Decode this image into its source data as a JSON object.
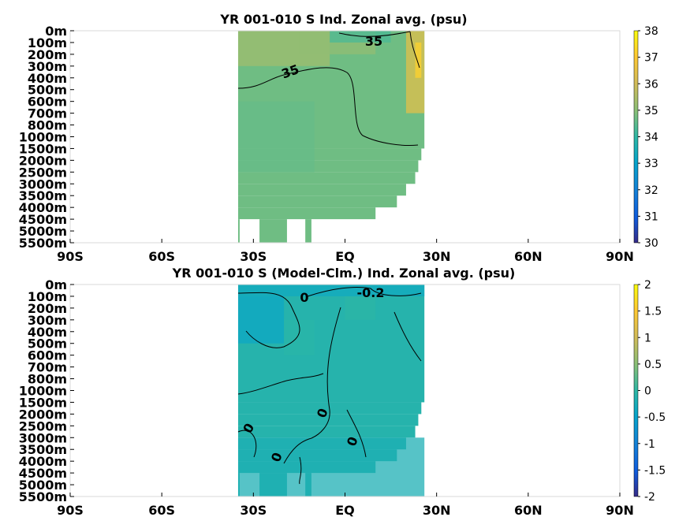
{
  "chart_data": [
    {
      "type": "heatmap",
      "title": "YR 001-010 S Ind. Zonal avg. (psu)",
      "x_ticks": [
        "90S",
        "60S",
        "30S",
        "EQ",
        "30N",
        "60N",
        "90N"
      ],
      "y_ticks": [
        "0m",
        "100m",
        "200m",
        "300m",
        "400m",
        "500m",
        "600m",
        "700m",
        "800m",
        "1000m",
        "1500m",
        "2000m",
        "2500m",
        "3000m",
        "3500m",
        "4000m",
        "4500m",
        "5000m",
        "5500m"
      ],
      "x_range": [
        -90,
        90
      ],
      "colorbar": {
        "min": 30,
        "max": 38,
        "ticks": [
          "30",
          "31",
          "32",
          "33",
          "34",
          "35",
          "36",
          "37",
          "38"
        ]
      },
      "contour_labels": [
        "35",
        "35"
      ],
      "background_value": 34.7,
      "regions": [
        {
          "lat": [
            -35,
            -5
          ],
          "level": [
            0,
            3
          ],
          "value": 35.3
        },
        {
          "lat": [
            -15,
            10
          ],
          "level": [
            0,
            2
          ],
          "value": 35.1
        },
        {
          "lat": [
            20,
            26
          ],
          "level": [
            0,
            7
          ],
          "value": 36.4
        },
        {
          "lat": [
            23,
            25
          ],
          "level": [
            1,
            4
          ],
          "value": 37.2
        },
        {
          "lat": [
            -35,
            -10
          ],
          "level": [
            6,
            12
          ],
          "value": 34.6
        },
        {
          "lat": [
            -5,
            15
          ],
          "level": [
            0,
            1
          ],
          "value": 34.3
        }
      ]
    },
    {
      "type": "heatmap",
      "title": "YR 001-010 S (Model-Clm.) Ind. Zonal avg. (psu)",
      "x_ticks": [
        "90S",
        "60S",
        "30S",
        "EQ",
        "30N",
        "60N",
        "90N"
      ],
      "y_ticks": [
        "0m",
        "100m",
        "200m",
        "300m",
        "400m",
        "500m",
        "600m",
        "700m",
        "800m",
        "1000m",
        "1500m",
        "2000m",
        "2500m",
        "3000m",
        "3500m",
        "4000m",
        "4500m",
        "5000m",
        "5500m"
      ],
      "x_range": [
        -90,
        90
      ],
      "colorbar": {
        "min": -2,
        "max": 2,
        "ticks": [
          "-2",
          "-1.5",
          "-1",
          "-0.5",
          "0",
          "0.5",
          "1",
          "1.5",
          "2"
        ]
      },
      "contour_labels": [
        "0",
        "-0.2",
        "0",
        "0",
        "0",
        "0"
      ],
      "background_value": -0.1,
      "regions": [
        {
          "lat": [
            -35,
            26
          ],
          "level": [
            0,
            1
          ],
          "value": -0.35
        },
        {
          "lat": [
            -35,
            -20
          ],
          "level": [
            1,
            5
          ],
          "value": -0.4
        },
        {
          "lat": [
            -20,
            -10
          ],
          "level": [
            3,
            6
          ],
          "value": -0.05
        },
        {
          "lat": [
            0,
            10
          ],
          "level": [
            1,
            3
          ],
          "value": -0.02
        },
        {
          "lat": [
            -35,
            26
          ],
          "level": [
            13,
            18
          ],
          "value": -0.2
        }
      ]
    }
  ]
}
